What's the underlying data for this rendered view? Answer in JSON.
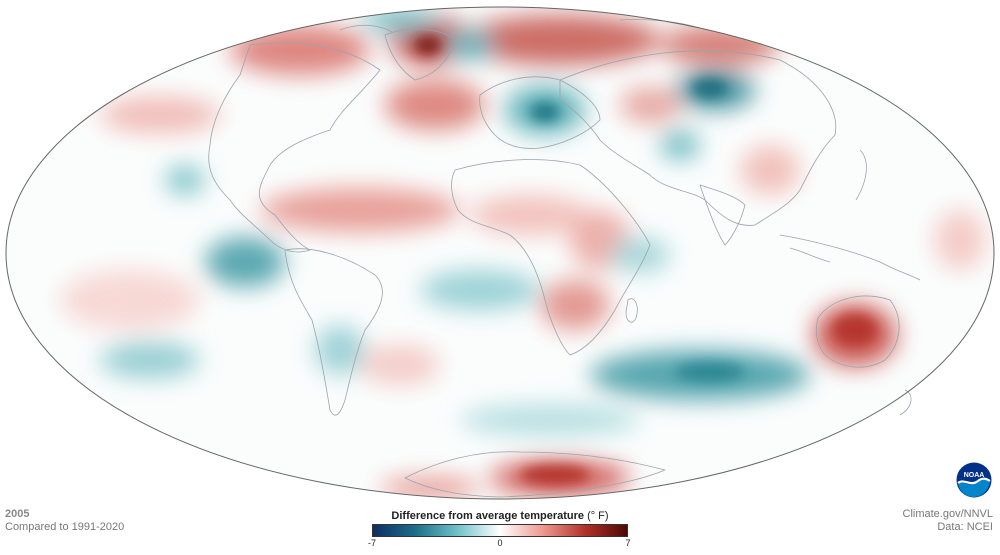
{
  "info": {
    "year": "2005",
    "baseline": "Compared to 1991-2020"
  },
  "legend": {
    "title": "Difference from average temperature",
    "unit": "(° F)",
    "min_label": "-7",
    "mid_label": "0",
    "max_label": "7",
    "colors": [
      "#0f2d66",
      "#1c6f88",
      "#6fc2c9",
      "#ffffff",
      "#ee9a92",
      "#b1322a",
      "#4d0a06"
    ]
  },
  "credits": {
    "line1": "Climate.gov/NNVL",
    "line2": "Data: NCEI"
  },
  "logo": {
    "text": "NOAA",
    "colors": [
      "#003087",
      "#0085ca",
      "#ffffff"
    ]
  },
  "map": {
    "projection": "mollweide",
    "ocean_color": "#ffffff",
    "outline_color": "#666666",
    "border_color": "#9aa4ab"
  }
}
